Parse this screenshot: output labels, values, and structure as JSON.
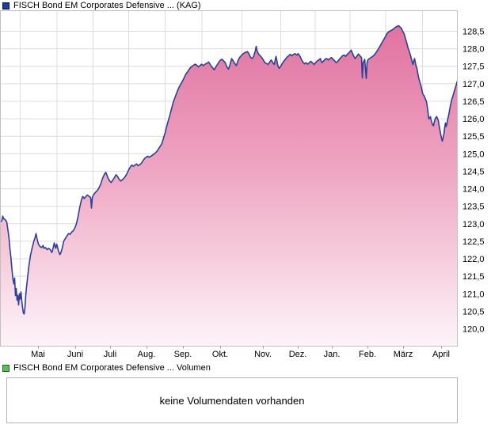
{
  "legend_top": {
    "label": "FISCH Bond EM Corporates Defensive ... (KAG)",
    "color": "#1d3d9e"
  },
  "legend_volume": {
    "label": "FISCH Bond EM Corporates Defensive ... Volumen",
    "color": "#5dbd5d"
  },
  "volume_panel": {
    "message": "keine Volumendaten vorhanden"
  },
  "chart_data": {
    "type": "area",
    "title": "FISCH Bond EM Corporates Defensive ... (KAG)",
    "legend_position": "top-left",
    "grid": true,
    "x_tick_labels": [
      "Mai",
      "Juni",
      "Juli",
      "Aug.",
      "Sep.",
      "Okt.",
      "Nov.",
      "Dez.",
      "Jan.",
      "Feb.",
      "März",
      "April"
    ],
    "y_axis": {
      "min": 120.0,
      "max": 128.5,
      "step": 0.5,
      "decimal_separator": ",",
      "side": "right"
    },
    "line_color": "#2d3f99",
    "fill_top_color": "#df6d9c",
    "fill_mid_color": "#efa9c4",
    "fill_bottom_color": "#fdf4f8",
    "grid_color": "#dcdcdc",
    "axis_color": "#c0c0c0",
    "points": [
      [
        0,
        123.05
      ],
      [
        2,
        123.1
      ],
      [
        3,
        123.22
      ],
      [
        4,
        123.15
      ],
      [
        6,
        123.12
      ],
      [
        8,
        123.05
      ],
      [
        9,
        122.9
      ],
      [
        10,
        122.75
      ],
      [
        11,
        122.55
      ],
      [
        12,
        122.3
      ],
      [
        13,
        122.1
      ],
      [
        14,
        121.85
      ],
      [
        15,
        121.6
      ],
      [
        16,
        121.4
      ],
      [
        17,
        121.28
      ],
      [
        18,
        121.45
      ],
      [
        19,
        120.95
      ],
      [
        20,
        121.15
      ],
      [
        21,
        120.82
      ],
      [
        22,
        120.95
      ],
      [
        23,
        120.68
      ],
      [
        24,
        121.0
      ],
      [
        25,
        120.85
      ],
      [
        26,
        121.05
      ],
      [
        27,
        120.8
      ],
      [
        28,
        120.6
      ],
      [
        29,
        120.45
      ],
      [
        30,
        120.42
      ],
      [
        31,
        120.6
      ],
      [
        32,
        120.95
      ],
      [
        33,
        121.2
      ],
      [
        34,
        121.4
      ],
      [
        35,
        121.6
      ],
      [
        36,
        121.8
      ],
      [
        37,
        121.95
      ],
      [
        38,
        122.1
      ],
      [
        39,
        122.2
      ],
      [
        40,
        122.3
      ],
      [
        42,
        122.48
      ],
      [
        44,
        122.62
      ],
      [
        45,
        122.72
      ],
      [
        46,
        122.6
      ],
      [
        47,
        122.5
      ],
      [
        48,
        122.42
      ],
      [
        50,
        122.35
      ],
      [
        52,
        122.32
      ],
      [
        54,
        122.38
      ],
      [
        55,
        122.3
      ],
      [
        57,
        122.32
      ],
      [
        59,
        122.26
      ],
      [
        61,
        122.3
      ],
      [
        63,
        122.26
      ],
      [
        65,
        122.18
      ],
      [
        66,
        122.25
      ],
      [
        68,
        122.45
      ],
      [
        69,
        122.35
      ],
      [
        70,
        122.3
      ],
      [
        71,
        122.42
      ],
      [
        72,
        122.35
      ],
      [
        73,
        122.25
      ],
      [
        74,
        122.18
      ],
      [
        75,
        122.12
      ],
      [
        76,
        122.15
      ],
      [
        77,
        122.22
      ],
      [
        78,
        122.3
      ],
      [
        79,
        122.4
      ],
      [
        80,
        122.5
      ],
      [
        82,
        122.58
      ],
      [
        84,
        122.65
      ],
      [
        86,
        122.72
      ],
      [
        88,
        122.7
      ],
      [
        90,
        122.76
      ],
      [
        92,
        122.8
      ],
      [
        94,
        122.88
      ],
      [
        96,
        123.0
      ],
      [
        97,
        123.1
      ],
      [
        98,
        123.2
      ],
      [
        99,
        123.32
      ],
      [
        100,
        123.45
      ],
      [
        101,
        123.55
      ],
      [
        102,
        123.65
      ],
      [
        103,
        123.72
      ],
      [
        104,
        123.78
      ],
      [
        106,
        123.72
      ],
      [
        108,
        123.78
      ],
      [
        110,
        123.82
      ],
      [
        112,
        123.78
      ],
      [
        114,
        123.75
      ],
      [
        115,
        123.45
      ],
      [
        116,
        123.72
      ],
      [
        117,
        123.8
      ],
      [
        119,
        123.87
      ],
      [
        121,
        123.92
      ],
      [
        123,
        123.97
      ],
      [
        125,
        124.05
      ],
      [
        127,
        124.15
      ],
      [
        129,
        124.3
      ],
      [
        131,
        124.4
      ],
      [
        133,
        124.47
      ],
      [
        134,
        124.42
      ],
      [
        136,
        124.3
      ],
      [
        138,
        124.22
      ],
      [
        140,
        124.18
      ],
      [
        142,
        124.25
      ],
      [
        144,
        124.32
      ],
      [
        146,
        124.4
      ],
      [
        148,
        124.35
      ],
      [
        150,
        124.27
      ],
      [
        152,
        124.22
      ],
      [
        154,
        124.26
      ],
      [
        156,
        124.3
      ],
      [
        158,
        124.36
      ],
      [
        160,
        124.44
      ],
      [
        162,
        124.54
      ],
      [
        164,
        124.62
      ],
      [
        166,
        124.68
      ],
      [
        168,
        124.64
      ],
      [
        170,
        124.68
      ],
      [
        172,
        124.71
      ],
      [
        174,
        124.66
      ],
      [
        176,
        124.69
      ],
      [
        178,
        124.73
      ],
      [
        180,
        124.8
      ],
      [
        182,
        124.86
      ],
      [
        184,
        124.9
      ],
      [
        186,
        124.93
      ],
      [
        188,
        124.9
      ],
      [
        190,
        124.93
      ],
      [
        192,
        124.96
      ],
      [
        194,
        124.99
      ],
      [
        196,
        125.03
      ],
      [
        198,
        125.08
      ],
      [
        200,
        125.15
      ],
      [
        202,
        125.22
      ],
      [
        204,
        125.3
      ],
      [
        206,
        125.45
      ],
      [
        208,
        125.6
      ],
      [
        210,
        125.78
      ],
      [
        212,
        125.95
      ],
      [
        214,
        126.1
      ],
      [
        216,
        126.28
      ],
      [
        218,
        126.45
      ],
      [
        220,
        126.58
      ],
      [
        222,
        126.7
      ],
      [
        224,
        126.82
      ],
      [
        226,
        126.92
      ],
      [
        228,
        127.0
      ],
      [
        230,
        127.08
      ],
      [
        232,
        127.17
      ],
      [
        234,
        127.27
      ],
      [
        236,
        127.33
      ],
      [
        238,
        127.4
      ],
      [
        240,
        127.46
      ],
      [
        242,
        127.5
      ],
      [
        244,
        127.53
      ],
      [
        246,
        127.56
      ],
      [
        248,
        127.53
      ],
      [
        250,
        127.48
      ],
      [
        252,
        127.52
      ],
      [
        254,
        127.56
      ],
      [
        256,
        127.52
      ],
      [
        258,
        127.55
      ],
      [
        260,
        127.58
      ],
      [
        262,
        127.6
      ],
      [
        263,
        127.62
      ],
      [
        265,
        127.55
      ],
      [
        267,
        127.48
      ],
      [
        269,
        127.43
      ],
      [
        270,
        127.4
      ],
      [
        272,
        127.48
      ],
      [
        274,
        127.55
      ],
      [
        276,
        127.62
      ],
      [
        278,
        127.68
      ],
      [
        280,
        127.7
      ],
      [
        282,
        127.65
      ],
      [
        284,
        127.6
      ],
      [
        286,
        127.48
      ],
      [
        288,
        127.42
      ],
      [
        290,
        127.55
      ],
      [
        292,
        127.72
      ],
      [
        294,
        127.65
      ],
      [
        296,
        127.58
      ],
      [
        298,
        127.52
      ],
      [
        300,
        127.66
      ],
      [
        302,
        127.75
      ],
      [
        304,
        127.8
      ],
      [
        306,
        127.85
      ],
      [
        308,
        127.88
      ],
      [
        310,
        127.9
      ],
      [
        312,
        127.92
      ],
      [
        314,
        127.85
      ],
      [
        316,
        127.75
      ],
      [
        318,
        127.72
      ],
      [
        320,
        127.8
      ],
      [
        322,
        127.95
      ],
      [
        323,
        128.07
      ],
      [
        324,
        127.95
      ],
      [
        326,
        127.85
      ],
      [
        328,
        127.8
      ],
      [
        330,
        127.75
      ],
      [
        332,
        127.68
      ],
      [
        334,
        127.6
      ],
      [
        336,
        127.58
      ],
      [
        338,
        127.55
      ],
      [
        340,
        127.62
      ],
      [
        342,
        127.68
      ],
      [
        344,
        127.6
      ],
      [
        346,
        127.55
      ],
      [
        347,
        127.68
      ],
      [
        348,
        127.78
      ],
      [
        349,
        127.68
      ],
      [
        350,
        127.55
      ],
      [
        351,
        127.48
      ],
      [
        352,
        127.44
      ],
      [
        354,
        127.5
      ],
      [
        356,
        127.58
      ],
      [
        358,
        127.65
      ],
      [
        360,
        127.7
      ],
      [
        362,
        127.76
      ],
      [
        364,
        127.8
      ],
      [
        366,
        127.84
      ],
      [
        368,
        127.8
      ],
      [
        370,
        127.84
      ],
      [
        372,
        127.86
      ],
      [
        374,
        127.82
      ],
      [
        376,
        127.86
      ],
      [
        378,
        127.8
      ],
      [
        380,
        127.7
      ],
      [
        382,
        127.62
      ],
      [
        384,
        127.57
      ],
      [
        386,
        127.6
      ],
      [
        388,
        127.56
      ],
      [
        390,
        127.6
      ],
      [
        392,
        127.64
      ],
      [
        394,
        127.6
      ],
      [
        396,
        127.55
      ],
      [
        398,
        127.6
      ],
      [
        400,
        127.65
      ],
      [
        402,
        127.68
      ],
      [
        404,
        127.72
      ],
      [
        405,
        127.65
      ],
      [
        406,
        127.6
      ],
      [
        408,
        127.65
      ],
      [
        410,
        127.7
      ],
      [
        412,
        127.72
      ],
      [
        414,
        127.68
      ],
      [
        416,
        127.72
      ],
      [
        418,
        127.75
      ],
      [
        420,
        127.7
      ],
      [
        422,
        127.66
      ],
      [
        424,
        127.6
      ],
      [
        426,
        127.64
      ],
      [
        428,
        127.7
      ],
      [
        430,
        127.75
      ],
      [
        432,
        127.8
      ],
      [
        434,
        127.82
      ],
      [
        436,
        127.78
      ],
      [
        438,
        127.84
      ],
      [
        440,
        127.88
      ],
      [
        442,
        127.93
      ],
      [
        443,
        127.96
      ],
      [
        444,
        127.9
      ],
      [
        446,
        127.8
      ],
      [
        448,
        127.72
      ],
      [
        450,
        127.78
      ],
      [
        452,
        127.85
      ],
      [
        454,
        127.8
      ],
      [
        456,
        127.75
      ],
      [
        457,
        127.17
      ],
      [
        458,
        127.6
      ],
      [
        460,
        127.7
      ],
      [
        462,
        127.15
      ],
      [
        463,
        127.6
      ],
      [
        464,
        127.68
      ],
      [
        466,
        127.72
      ],
      [
        468,
        127.75
      ],
      [
        470,
        127.78
      ],
      [
        472,
        127.82
      ],
      [
        474,
        127.88
      ],
      [
        476,
        127.95
      ],
      [
        478,
        128.02
      ],
      [
        480,
        128.1
      ],
      [
        482,
        128.18
      ],
      [
        484,
        128.26
      ],
      [
        486,
        128.34
      ],
      [
        488,
        128.43
      ],
      [
        490,
        128.48
      ],
      [
        492,
        128.51
      ],
      [
        494,
        128.53
      ],
      [
        496,
        128.56
      ],
      [
        498,
        128.6
      ],
      [
        500,
        128.63
      ],
      [
        502,
        128.65
      ],
      [
        503,
        128.66
      ],
      [
        504,
        128.63
      ],
      [
        506,
        128.6
      ],
      [
        508,
        128.5
      ],
      [
        510,
        128.42
      ],
      [
        512,
        128.25
      ],
      [
        513,
        128.18
      ],
      [
        515,
        128.0
      ],
      [
        516,
        127.95
      ],
      [
        518,
        127.8
      ],
      [
        520,
        127.62
      ],
      [
        521,
        127.55
      ],
      [
        522,
        127.65
      ],
      [
        523,
        127.72
      ],
      [
        524,
        127.6
      ],
      [
        525,
        127.5
      ],
      [
        526,
        127.44
      ],
      [
        527,
        127.3
      ],
      [
        528,
        127.19
      ],
      [
        529,
        127.1
      ],
      [
        530,
        127.02
      ],
      [
        531,
        126.95
      ],
      [
        532,
        126.85
      ],
      [
        533,
        126.74
      ],
      [
        534,
        126.68
      ],
      [
        535,
        126.66
      ],
      [
        536,
        126.6
      ],
      [
        537,
        126.55
      ],
      [
        538,
        126.49
      ],
      [
        539,
        126.35
      ],
      [
        540,
        126.18
      ],
      [
        541,
        126.0
      ],
      [
        542,
        126.02
      ],
      [
        543,
        126.06
      ],
      [
        544,
        125.95
      ],
      [
        545,
        125.88
      ],
      [
        546,
        125.82
      ],
      [
        547,
        125.8
      ],
      [
        548,
        125.92
      ],
      [
        549,
        126.0
      ],
      [
        550,
        126.04
      ],
      [
        551,
        126.06
      ],
      [
        552,
        126.0
      ],
      [
        553,
        125.95
      ],
      [
        554,
        125.8
      ],
      [
        555,
        125.68
      ],
      [
        556,
        125.55
      ],
      [
        557,
        125.45
      ],
      [
        558,
        125.36
      ],
      [
        559,
        125.45
      ],
      [
        560,
        125.56
      ],
      [
        561,
        125.75
      ],
      [
        562,
        125.88
      ],
      [
        563,
        125.78
      ],
      [
        564,
        125.88
      ],
      [
        565,
        126.0
      ],
      [
        566,
        126.1
      ],
      [
        567,
        126.22
      ],
      [
        568,
        126.35
      ],
      [
        569,
        126.45
      ],
      [
        570,
        126.56
      ],
      [
        571,
        126.62
      ],
      [
        572,
        126.7
      ],
      [
        573,
        126.78
      ],
      [
        574,
        126.85
      ],
      [
        575,
        126.92
      ],
      [
        576,
        127.0
      ],
      [
        577,
        127.08
      ]
    ]
  }
}
